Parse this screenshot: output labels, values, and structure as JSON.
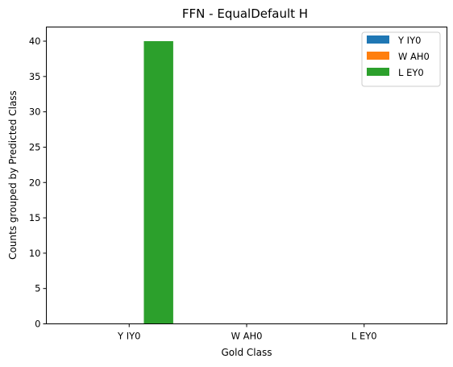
{
  "chart_data": {
    "type": "bar",
    "title": "FFN - EqualDefault H",
    "xlabel": "Gold Class",
    "ylabel": "Counts grouped by Predicted Class",
    "categories": [
      "Y IY0",
      "W AH0",
      "L EY0"
    ],
    "ylim": [
      0,
      42
    ],
    "yticks": [
      0,
      5,
      10,
      15,
      20,
      25,
      30,
      35,
      40
    ],
    "grid": false,
    "legend_position": "top-right",
    "series": [
      {
        "name": "Y IY0",
        "color": "#1f77b4",
        "values": [
          0,
          0,
          0
        ]
      },
      {
        "name": "W AH0",
        "color": "#ff7f0e",
        "values": [
          0,
          0,
          0
        ]
      },
      {
        "name": "L EY0",
        "color": "#2ca02c",
        "values": [
          40,
          0,
          0
        ]
      }
    ]
  }
}
